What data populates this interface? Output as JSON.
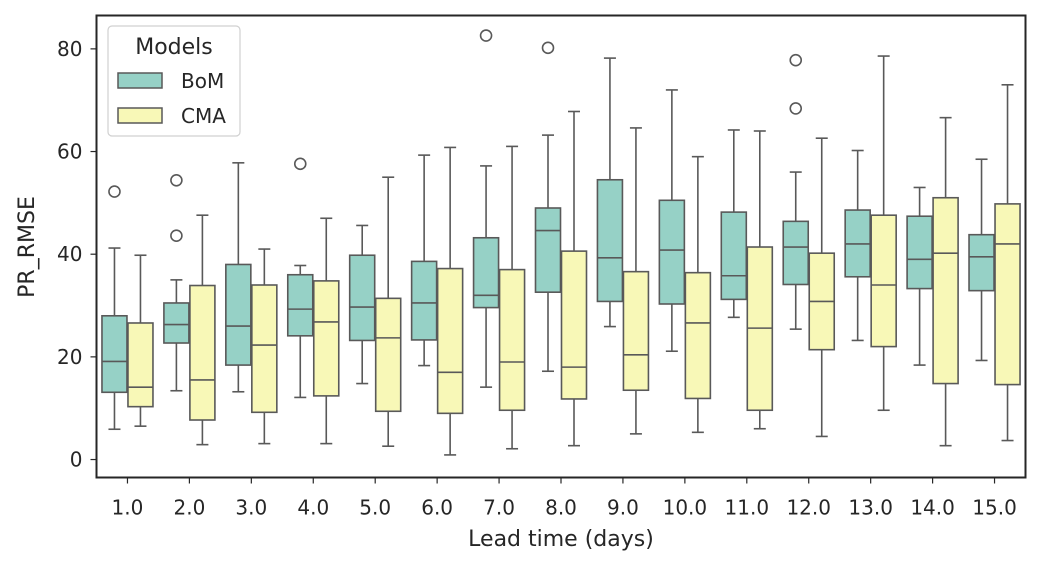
{
  "chart_data": {
    "type": "boxplot",
    "xlabel": "Lead time (days)",
    "ylabel": "PR_RMSE",
    "categories": [
      "1.0",
      "2.0",
      "3.0",
      "4.0",
      "5.0",
      "6.0",
      "7.0",
      "8.0",
      "9.0",
      "10.0",
      "11.0",
      "12.0",
      "13.0",
      "14.0",
      "15.0"
    ],
    "ylim": [
      -3.5,
      86.5
    ],
    "yticks": [
      0,
      20,
      40,
      60,
      80
    ],
    "grid": false,
    "legend": {
      "title": "Models",
      "position": "top-left"
    },
    "series": [
      {
        "name": "BoM",
        "color": "#96d1c6",
        "boxes": [
          {
            "whislo": 5.9,
            "q1": 13.1,
            "med": 19.1,
            "q3": 28.0,
            "whishi": 41.2,
            "fliers": [
              52.2
            ]
          },
          {
            "whislo": 13.4,
            "q1": 22.7,
            "med": 26.3,
            "q3": 30.5,
            "whishi": 35.0,
            "fliers": [
              54.4,
              43.6
            ]
          },
          {
            "whislo": 13.2,
            "q1": 18.4,
            "med": 26.0,
            "q3": 38.0,
            "whishi": 57.8,
            "fliers": []
          },
          {
            "whislo": 12.1,
            "q1": 24.1,
            "med": 29.3,
            "q3": 36.0,
            "whishi": 37.8,
            "fliers": [
              57.6
            ]
          },
          {
            "whislo": 14.8,
            "q1": 23.2,
            "med": 29.7,
            "q3": 39.8,
            "whishi": 45.6,
            "fliers": []
          },
          {
            "whislo": 18.3,
            "q1": 23.3,
            "med": 30.5,
            "q3": 38.6,
            "whishi": 59.3,
            "fliers": []
          },
          {
            "whislo": 14.1,
            "q1": 29.6,
            "med": 32.0,
            "q3": 43.2,
            "whishi": 57.2,
            "fliers": [
              82.6
            ]
          },
          {
            "whislo": 17.2,
            "q1": 32.6,
            "med": 44.6,
            "q3": 49.0,
            "whishi": 63.2,
            "fliers": [
              80.2
            ]
          },
          {
            "whislo": 25.9,
            "q1": 30.8,
            "med": 39.3,
            "q3": 54.5,
            "whishi": 78.2,
            "fliers": []
          },
          {
            "whislo": 21.1,
            "q1": 30.3,
            "med": 40.8,
            "q3": 50.5,
            "whishi": 72.0,
            "fliers": []
          },
          {
            "whislo": 27.7,
            "q1": 31.2,
            "med": 35.8,
            "q3": 48.2,
            "whishi": 64.2,
            "fliers": []
          },
          {
            "whislo": 25.4,
            "q1": 34.1,
            "med": 41.4,
            "q3": 46.4,
            "whishi": 56.0,
            "fliers": [
              68.4,
              77.8
            ]
          },
          {
            "whislo": 23.2,
            "q1": 35.6,
            "med": 42.0,
            "q3": 48.6,
            "whishi": 60.2,
            "fliers": []
          },
          {
            "whislo": 18.4,
            "q1": 33.3,
            "med": 39.0,
            "q3": 47.4,
            "whishi": 53.0,
            "fliers": []
          },
          {
            "whislo": 19.3,
            "q1": 32.9,
            "med": 39.5,
            "q3": 43.8,
            "whishi": 58.5,
            "fliers": []
          }
        ]
      },
      {
        "name": "CMA",
        "color": "#f8f8b7",
        "boxes": [
          {
            "whislo": 6.5,
            "q1": 10.3,
            "med": 14.1,
            "q3": 26.6,
            "whishi": 39.8,
            "fliers": []
          },
          {
            "whislo": 2.9,
            "q1": 7.7,
            "med": 15.5,
            "q3": 33.9,
            "whishi": 47.6,
            "fliers": []
          },
          {
            "whislo": 3.1,
            "q1": 9.2,
            "med": 22.3,
            "q3": 34.0,
            "whishi": 41.0,
            "fliers": []
          },
          {
            "whislo": 3.1,
            "q1": 12.4,
            "med": 26.8,
            "q3": 34.8,
            "whishi": 47.0,
            "fliers": []
          },
          {
            "whislo": 2.6,
            "q1": 9.4,
            "med": 23.7,
            "q3": 31.4,
            "whishi": 55.0,
            "fliers": []
          },
          {
            "whislo": 0.9,
            "q1": 9.0,
            "med": 17.0,
            "q3": 37.2,
            "whishi": 60.8,
            "fliers": []
          },
          {
            "whislo": 2.1,
            "q1": 9.6,
            "med": 19.0,
            "q3": 37.0,
            "whishi": 61.0,
            "fliers": []
          },
          {
            "whislo": 2.7,
            "q1": 11.8,
            "med": 18.0,
            "q3": 40.6,
            "whishi": 67.8,
            "fliers": []
          },
          {
            "whislo": 5.0,
            "q1": 13.5,
            "med": 20.4,
            "q3": 36.6,
            "whishi": 64.6,
            "fliers": []
          },
          {
            "whislo": 5.3,
            "q1": 11.9,
            "med": 26.6,
            "q3": 36.4,
            "whishi": 59.0,
            "fliers": []
          },
          {
            "whislo": 6.0,
            "q1": 9.6,
            "med": 25.6,
            "q3": 41.4,
            "whishi": 64.0,
            "fliers": []
          },
          {
            "whislo": 4.5,
            "q1": 21.4,
            "med": 30.8,
            "q3": 40.2,
            "whishi": 62.6,
            "fliers": []
          },
          {
            "whislo": 9.6,
            "q1": 22.0,
            "med": 34.0,
            "q3": 47.6,
            "whishi": 78.6,
            "fliers": []
          },
          {
            "whislo": 2.7,
            "q1": 14.8,
            "med": 40.2,
            "q3": 51.0,
            "whishi": 66.6,
            "fliers": []
          },
          {
            "whislo": 3.7,
            "q1": 14.6,
            "med": 42.0,
            "q3": 49.8,
            "whishi": 73.0,
            "fliers": []
          }
        ]
      }
    ]
  }
}
